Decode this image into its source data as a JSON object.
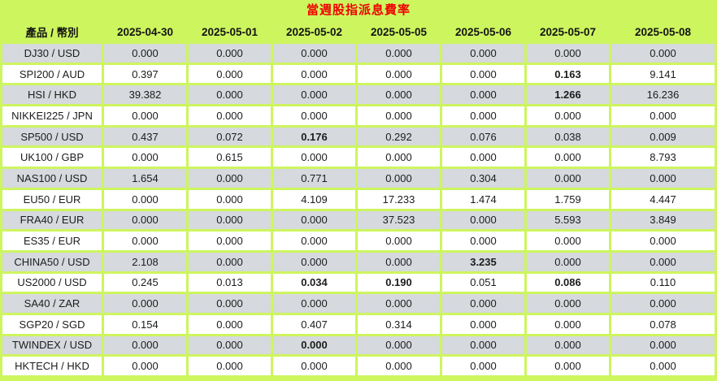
{
  "table": {
    "title": "當週股指派息費率",
    "product_header": "產品 / 幣別",
    "date_headers": [
      "2025-04-30",
      "2025-05-01",
      "2025-05-02",
      "2025-05-05",
      "2025-05-06",
      "2025-05-07",
      "2025-05-08"
    ],
    "rows": [
      {
        "product": "DJ30 / USD",
        "values": [
          "0.000",
          "0.000",
          "0.000",
          "0.000",
          "0.000",
          "0.000",
          "0.000"
        ],
        "bold": []
      },
      {
        "product": "SPI200 / AUD",
        "values": [
          "0.397",
          "0.000",
          "0.000",
          "0.000",
          "0.000",
          "0.163",
          "9.141"
        ],
        "bold": [
          5
        ]
      },
      {
        "product": "HSI / HKD",
        "values": [
          "39.382",
          "0.000",
          "0.000",
          "0.000",
          "0.000",
          "1.266",
          "16.236"
        ],
        "bold": [
          5
        ]
      },
      {
        "product": "NIKKEI225 / JPN",
        "values": [
          "0.000",
          "0.000",
          "0.000",
          "0.000",
          "0.000",
          "0.000",
          "0.000"
        ],
        "bold": []
      },
      {
        "product": "SP500 / USD",
        "values": [
          "0.437",
          "0.072",
          "0.176",
          "0.292",
          "0.076",
          "0.038",
          "0.009"
        ],
        "bold": [
          2
        ]
      },
      {
        "product": "UK100 / GBP",
        "values": [
          "0.000",
          "0.615",
          "0.000",
          "0.000",
          "0.000",
          "0.000",
          "8.793"
        ],
        "bold": []
      },
      {
        "product": "NAS100 / USD",
        "values": [
          "1.654",
          "0.000",
          "0.771",
          "0.000",
          "0.304",
          "0.000",
          "0.000"
        ],
        "bold": []
      },
      {
        "product": "EU50 / EUR",
        "values": [
          "0.000",
          "0.000",
          "4.109",
          "17.233",
          "1.474",
          "1.759",
          "4.447"
        ],
        "bold": []
      },
      {
        "product": "FRA40 / EUR",
        "values": [
          "0.000",
          "0.000",
          "0.000",
          "37.523",
          "0.000",
          "5.593",
          "3.849"
        ],
        "bold": []
      },
      {
        "product": "ES35 / EUR",
        "values": [
          "0.000",
          "0.000",
          "0.000",
          "0.000",
          "0.000",
          "0.000",
          "0.000"
        ],
        "bold": []
      },
      {
        "product": "CHINA50 / USD",
        "values": [
          "2.108",
          "0.000",
          "0.000",
          "0.000",
          "3.235",
          "0.000",
          "0.000"
        ],
        "bold": [
          4
        ]
      },
      {
        "product": "US2000 / USD",
        "values": [
          "0.245",
          "0.013",
          "0.034",
          "0.190",
          "0.051",
          "0.086",
          "0.110"
        ],
        "bold": [
          2,
          3,
          5
        ]
      },
      {
        "product": "SA40 / ZAR",
        "values": [
          "0.000",
          "0.000",
          "0.000",
          "0.000",
          "0.000",
          "0.000",
          "0.000"
        ],
        "bold": []
      },
      {
        "product": "SGP20 / SGD",
        "values": [
          "0.154",
          "0.000",
          "0.407",
          "0.314",
          "0.000",
          "0.000",
          "0.078"
        ],
        "bold": []
      },
      {
        "product": "TWINDEX / USD",
        "values": [
          "0.000",
          "0.000",
          "0.000",
          "0.000",
          "0.000",
          "0.000",
          "0.000"
        ],
        "bold": [
          2
        ]
      },
      {
        "product": "HKTECH / HKD",
        "values": [
          "0.000",
          "0.000",
          "0.000",
          "0.000",
          "0.000",
          "0.000",
          "0.000"
        ],
        "bold": []
      }
    ],
    "colors": {
      "chrome_lime": "#cdf55e",
      "row_gray": "#d6d9dd",
      "row_white": "#ffffff",
      "title_red": "#f00000",
      "text_dark": "#1c1c1c"
    }
  }
}
